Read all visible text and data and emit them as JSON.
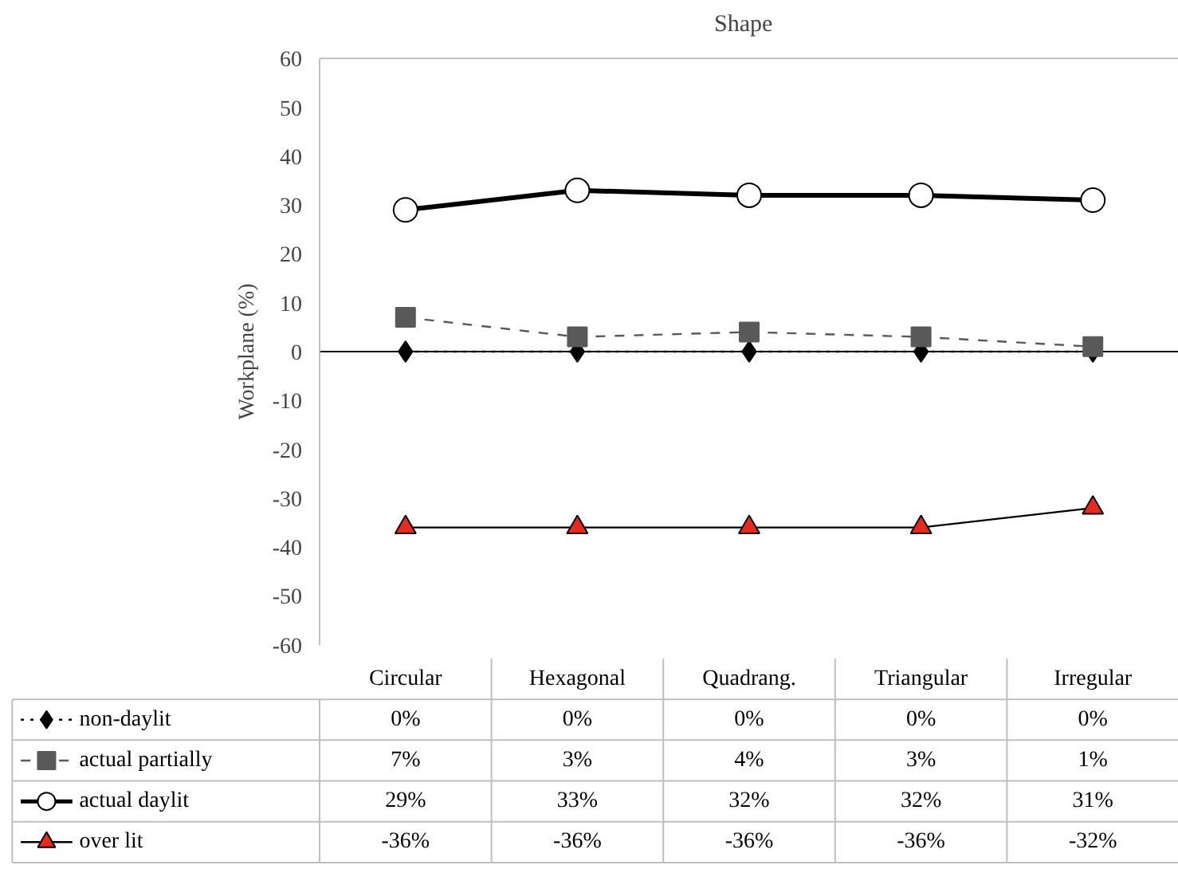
{
  "chart_data": {
    "type": "line",
    "title": "Shape",
    "ylabel": "Workplane (%)",
    "categories": [
      "Circular",
      "Hexagonal",
      "Quadrang.",
      "Triangular",
      "Irregular"
    ],
    "ylim": [
      -60,
      60
    ],
    "yticks": [
      -60,
      -50,
      -40,
      -30,
      -20,
      -10,
      0,
      10,
      20,
      30,
      40,
      50,
      60
    ],
    "grid": false,
    "legend": "left",
    "series": [
      {
        "name": "non-daylit",
        "color": "#000000",
        "marker": "diamond",
        "line_style": "dotted",
        "values": [
          0,
          0,
          0,
          0,
          0
        ],
        "value_labels": [
          "0%",
          "0%",
          "0%",
          "0%",
          "0%"
        ]
      },
      {
        "name": "actual partially",
        "color": "#595959",
        "marker": "square",
        "line_style": "dashed",
        "values": [
          7,
          3,
          4,
          3,
          1
        ],
        "value_labels": [
          "7%",
          "3%",
          "4%",
          "3%",
          "1%"
        ]
      },
      {
        "name": "actual daylit",
        "color": "#000000",
        "marker": "circle",
        "line_style": "solid",
        "values": [
          29,
          33,
          32,
          32,
          31
        ],
        "value_labels": [
          "29%",
          "33%",
          "32%",
          "32%",
          "31%"
        ]
      },
      {
        "name": "over lit",
        "color": "#e8291c",
        "marker": "triangle",
        "line_style": "solid",
        "values": [
          -36,
          -36,
          -36,
          -36,
          -32
        ],
        "value_labels": [
          "-36%",
          "-36%",
          "-36%",
          "-36%",
          "-32%"
        ]
      }
    ]
  }
}
